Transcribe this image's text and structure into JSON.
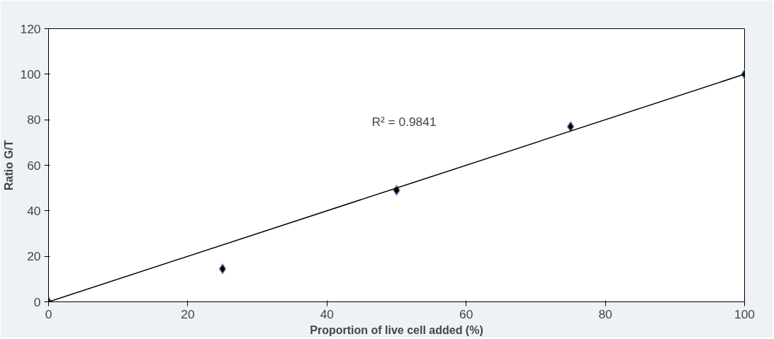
{
  "chart_data": {
    "type": "scatter",
    "xlabel": "Proportion of live cell added (%)",
    "ylabel": "Ratio G/T",
    "xlim": [
      0,
      100
    ],
    "ylim": [
      0,
      120
    ],
    "xticks": [
      0,
      20,
      40,
      60,
      80,
      100
    ],
    "yticks": [
      0,
      20,
      40,
      60,
      80,
      100,
      120
    ],
    "grid": false,
    "series": [
      {
        "color": "#000000",
        "marker": "diamond",
        "x": [
          0,
          25,
          50,
          75,
          100
        ],
        "values": [
          0,
          14.5,
          49,
          77,
          100
        ]
      },
      {
        "type": "line",
        "color": "#000000",
        "x": [
          0,
          100
        ],
        "values": [
          0,
          100
        ]
      }
    ],
    "annotations": [
      "R² = 0.9841"
    ]
  }
}
